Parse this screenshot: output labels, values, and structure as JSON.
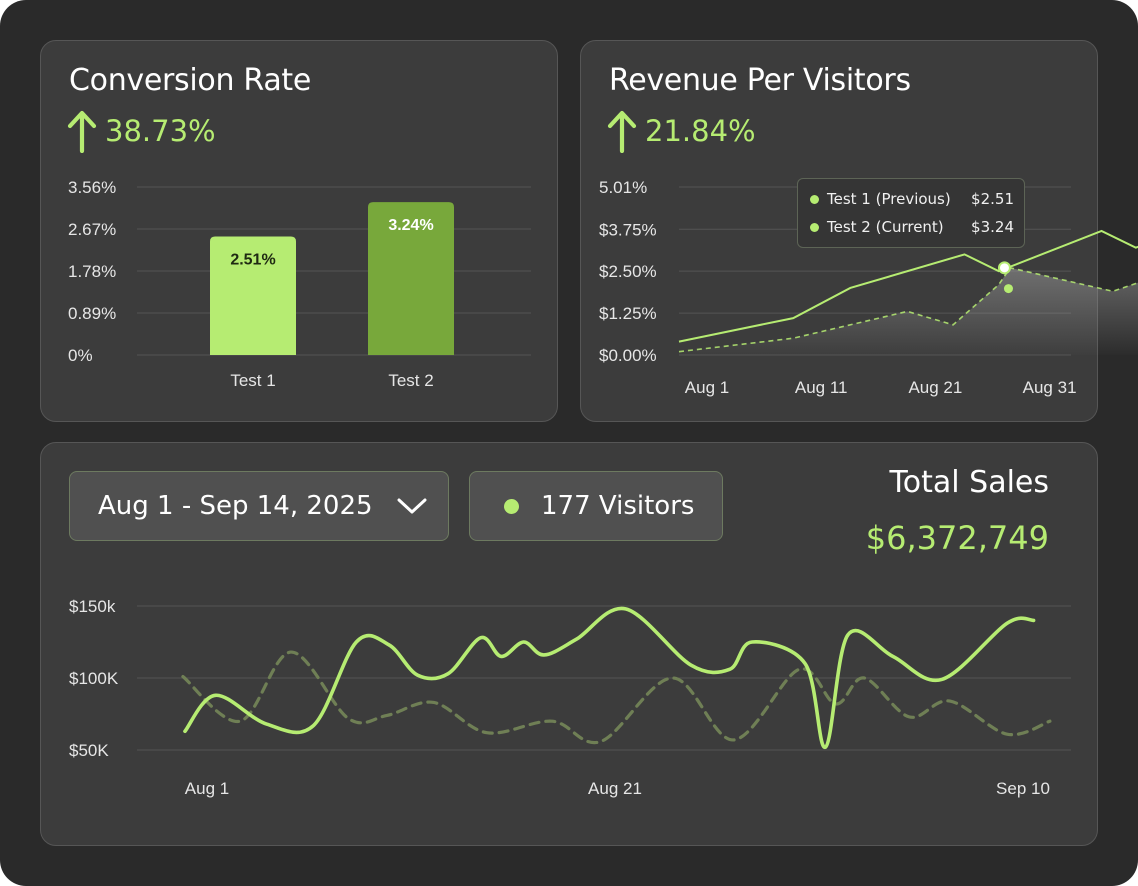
{
  "colors": {
    "accent": "#b6ec72",
    "bar_test1": "#b6ec72",
    "bar_test2": "#78a83b",
    "dashed": "#6f7f55",
    "card": "#3c3c3c",
    "background": "#2a2a2a"
  },
  "conversion": {
    "title": "Conversion Rate",
    "delta_icon": "arrow-up-icon",
    "delta": "38.73%"
  },
  "revenue": {
    "title": "Revenue Per Visitors",
    "delta_icon": "arrow-up-icon",
    "delta": "21.84%",
    "tooltip": {
      "rows": [
        {
          "name": "Test 1 (Previous)",
          "value": "$2.51"
        },
        {
          "name": "Test 2 (Current)",
          "value": "$3.24"
        }
      ]
    }
  },
  "sales": {
    "date_range": "Aug 1 - Sep 14, 2025",
    "date_icon": "chevron-down-icon",
    "visitors": "177 Visitors",
    "total_title": "Total Sales",
    "total_value": "$6,372,749"
  },
  "chart_data": [
    {
      "id": "conversion-rate",
      "type": "bar",
      "categories": [
        "Test 1",
        "Test 2"
      ],
      "values": [
        2.51,
        3.24
      ],
      "value_labels": [
        "2.51%",
        "3.24%"
      ],
      "ylim": [
        0,
        3.56
      ],
      "y_ticks": [
        0,
        0.89,
        1.78,
        2.67,
        3.56
      ],
      "y_tick_labels": [
        "0%",
        "0.89%",
        "1.78%",
        "2.67%",
        "3.56%"
      ],
      "grid": true
    },
    {
      "id": "revenue-per-visitors",
      "type": "area",
      "x_tick_labels": [
        "Aug 1",
        "Aug 11",
        "Aug 21",
        "Aug 31"
      ],
      "x_tick_days": [
        1,
        11,
        21,
        31
      ],
      "ylim": [
        0,
        5.01
      ],
      "y_ticks": [
        0,
        1.25,
        2.5,
        3.75,
        5.01
      ],
      "y_tick_labels": [
        "$0.00%",
        "$1.25%",
        "$2.50%",
        "$3.75%",
        "5.01%"
      ],
      "grid": true,
      "series": [
        {
          "style": "solid",
          "days": [
            1,
            11,
            16,
            26,
            29,
            38,
            41,
            45
          ],
          "values": [
            0.4,
            1.1,
            2.0,
            3.0,
            2.5,
            3.7,
            3.2,
            3.7
          ]
        },
        {
          "style": "dashed-area",
          "days": [
            1,
            11,
            21,
            25,
            29,
            30,
            39,
            45
          ],
          "values": [
            0.1,
            0.5,
            1.3,
            0.9,
            2.1,
            2.6,
            1.9,
            2.6
          ]
        }
      ],
      "highlight_points": [
        {
          "day": 29.5,
          "value": 2.6
        },
        {
          "day": 29.5,
          "value": 2.1
        }
      ]
    },
    {
      "id": "total-sales",
      "type": "line",
      "x_tick_labels": [
        "Aug 1",
        "Aug 21",
        "Sep 10"
      ],
      "x_tick_days": [
        1,
        21,
        41
      ],
      "ylim": [
        50,
        150
      ],
      "y_ticks": [
        50,
        100,
        150
      ],
      "y_tick_labels": [
        "$50K",
        "$100K",
        "$150k"
      ],
      "grid": true,
      "series": [
        {
          "style": "solid",
          "days": [
            0.9,
            2.4,
            4.9,
            7.2,
            9.3,
            10.9,
            12.3,
            13.8,
            15.4,
            16.4,
            17.5,
            18.5,
            20.1,
            22.5,
            25.7,
            27.6,
            28.7,
            31.3,
            32.3,
            33.4,
            35.6,
            38.0,
            41.2,
            42.5
          ],
          "values": [
            63,
            88,
            68,
            67,
            125,
            123,
            102,
            103,
            128,
            115,
            125,
            116,
            127,
            148,
            109,
            106,
            125,
            110,
            52,
            130,
            115,
            99,
            138,
            140
          ]
        },
        {
          "style": "dashed",
          "days": [
            0.8,
            3.6,
            6.1,
            8.9,
            10.8,
            13.1,
            15.7,
            18.9,
            21.3,
            24.8,
            27.8,
            31.0,
            32.8,
            34.2,
            36.4,
            38.4,
            41.2,
            43.3
          ],
          "values": [
            101,
            70,
            118,
            72,
            74,
            83,
            62,
            70,
            56,
            100,
            57,
            106,
            82,
            100,
            73,
            84,
            61,
            70
          ]
        }
      ]
    }
  ]
}
